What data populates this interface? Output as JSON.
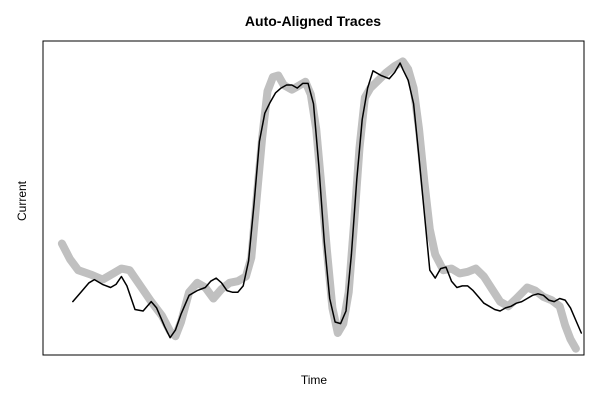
{
  "chart_data": {
    "type": "line",
    "title": "Auto-Aligned Traces",
    "xlabel": "Time",
    "ylabel": "Current",
    "xlim": [
      0,
      100
    ],
    "ylim": [
      0,
      100
    ],
    "x_ticks_shown": false,
    "y_ticks_shown": false,
    "grid": false,
    "legend": "none",
    "series": [
      {
        "color": "#c0c0c0",
        "style": "thick",
        "points": [
          [
            3.5,
            35.5
          ],
          [
            5.0,
            30.5
          ],
          [
            6.5,
            27.0
          ],
          [
            9.0,
            25.5
          ],
          [
            11.0,
            24.0
          ],
          [
            13.0,
            26.0
          ],
          [
            14.5,
            27.5
          ],
          [
            16.0,
            27.0
          ],
          [
            18.0,
            22.0
          ],
          [
            20.0,
            17.0
          ],
          [
            22.0,
            12.5
          ],
          [
            23.5,
            7.5
          ],
          [
            24.5,
            6.0
          ],
          [
            25.5,
            10.5
          ],
          [
            27.0,
            20.0
          ],
          [
            28.5,
            23.0
          ],
          [
            30.0,
            21.5
          ],
          [
            31.5,
            18.0
          ],
          [
            33.0,
            21.0
          ],
          [
            34.5,
            23.0
          ],
          [
            36.0,
            23.5
          ],
          [
            37.5,
            25.0
          ],
          [
            38.5,
            31.0
          ],
          [
            39.5,
            50.0
          ],
          [
            40.5,
            69.0
          ],
          [
            41.5,
            84.0
          ],
          [
            42.5,
            88.5
          ],
          [
            43.5,
            89.0
          ],
          [
            44.5,
            86.0
          ],
          [
            46.0,
            84.5
          ],
          [
            47.5,
            86.0
          ],
          [
            48.5,
            87.0
          ],
          [
            49.5,
            83.0
          ],
          [
            50.5,
            72.0
          ],
          [
            51.5,
            53.0
          ],
          [
            52.5,
            33.0
          ],
          [
            53.5,
            15.0
          ],
          [
            54.5,
            7.0
          ],
          [
            55.5,
            10.0
          ],
          [
            56.5,
            20.0
          ],
          [
            57.5,
            42.0
          ],
          [
            58.5,
            66.0
          ],
          [
            59.5,
            82.0
          ],
          [
            60.5,
            85.0
          ],
          [
            62.0,
            87.5
          ],
          [
            63.5,
            90.0
          ],
          [
            65.0,
            92.0
          ],
          [
            66.5,
            93.5
          ],
          [
            67.5,
            91.0
          ],
          [
            68.5,
            85.0
          ],
          [
            69.5,
            72.0
          ],
          [
            70.5,
            55.0
          ],
          [
            71.5,
            40.0
          ],
          [
            72.5,
            32.0
          ],
          [
            74.0,
            27.0
          ],
          [
            75.5,
            27.5
          ],
          [
            77.0,
            26.0
          ],
          [
            78.5,
            26.5
          ],
          [
            80.0,
            27.5
          ],
          [
            81.5,
            25.0
          ],
          [
            83.0,
            21.0
          ],
          [
            84.5,
            17.0
          ],
          [
            86.0,
            15.5
          ],
          [
            87.5,
            18.0
          ],
          [
            89.5,
            21.5
          ],
          [
            91.0,
            20.5
          ],
          [
            92.5,
            18.5
          ],
          [
            94.0,
            17.5
          ],
          [
            95.5,
            15.5
          ],
          [
            96.5,
            9.5
          ],
          [
            97.5,
            5.0
          ],
          [
            98.5,
            2.0
          ]
        ]
      },
      {
        "color": "#000000",
        "style": "thin",
        "points": [
          [
            5.5,
            17.0
          ],
          [
            7.0,
            20.0
          ],
          [
            8.5,
            23.0
          ],
          [
            9.5,
            24.0
          ],
          [
            11.0,
            22.5
          ],
          [
            12.5,
            21.5
          ],
          [
            13.5,
            22.5
          ],
          [
            14.5,
            25.0
          ],
          [
            15.5,
            22.0
          ],
          [
            17.0,
            14.5
          ],
          [
            18.5,
            14.0
          ],
          [
            20.0,
            17.0
          ],
          [
            21.0,
            15.0
          ],
          [
            22.5,
            9.0
          ],
          [
            23.5,
            5.5
          ],
          [
            24.5,
            8.0
          ],
          [
            25.5,
            13.0
          ],
          [
            27.0,
            19.0
          ],
          [
            28.5,
            20.5
          ],
          [
            30.0,
            21.5
          ],
          [
            31.0,
            23.5
          ],
          [
            32.0,
            24.5
          ],
          [
            33.0,
            23.0
          ],
          [
            34.0,
            20.5
          ],
          [
            35.0,
            20.0
          ],
          [
            36.0,
            20.0
          ],
          [
            37.0,
            22.0
          ],
          [
            38.0,
            30.0
          ],
          [
            39.0,
            48.0
          ],
          [
            40.0,
            68.0
          ],
          [
            41.0,
            77.0
          ],
          [
            42.0,
            80.5
          ],
          [
            43.0,
            83.5
          ],
          [
            44.0,
            85.0
          ],
          [
            45.0,
            86.0
          ],
          [
            46.0,
            86.0
          ],
          [
            47.0,
            85.0
          ],
          [
            48.0,
            86.5
          ],
          [
            49.0,
            86.5
          ],
          [
            50.0,
            80.0
          ],
          [
            51.0,
            60.0
          ],
          [
            52.0,
            36.0
          ],
          [
            53.0,
            18.0
          ],
          [
            54.0,
            10.5
          ],
          [
            55.0,
            10.0
          ],
          [
            56.0,
            14.0
          ],
          [
            57.0,
            32.0
          ],
          [
            58.0,
            56.0
          ],
          [
            59.0,
            75.0
          ],
          [
            60.0,
            85.0
          ],
          [
            61.0,
            90.5
          ],
          [
            62.5,
            89.0
          ],
          [
            64.0,
            88.0
          ],
          [
            65.0,
            90.0
          ],
          [
            66.0,
            93.0
          ],
          [
            66.5,
            91.0
          ],
          [
            67.5,
            87.5
          ],
          [
            68.5,
            80.0
          ],
          [
            69.5,
            63.0
          ],
          [
            70.5,
            45.0
          ],
          [
            71.5,
            27.0
          ],
          [
            72.5,
            24.5
          ],
          [
            73.5,
            27.5
          ],
          [
            74.5,
            28.0
          ],
          [
            75.5,
            23.5
          ],
          [
            76.5,
            21.5
          ],
          [
            77.5,
            22.0
          ],
          [
            78.5,
            22.0
          ],
          [
            79.5,
            20.5
          ],
          [
            80.5,
            18.5
          ],
          [
            81.5,
            16.5
          ],
          [
            82.5,
            15.5
          ],
          [
            83.5,
            14.5
          ],
          [
            84.5,
            14.0
          ],
          [
            85.5,
            15.0
          ],
          [
            86.5,
            15.5
          ],
          [
            87.5,
            16.5
          ],
          [
            88.5,
            17.0
          ],
          [
            89.5,
            18.0
          ],
          [
            90.5,
            19.0
          ],
          [
            91.5,
            19.5
          ],
          [
            92.5,
            19.0
          ],
          [
            93.5,
            17.5
          ],
          [
            94.5,
            17.0
          ],
          [
            95.5,
            18.0
          ],
          [
            96.5,
            17.5
          ],
          [
            97.5,
            15.0
          ],
          [
            98.5,
            11.0
          ],
          [
            99.5,
            7.0
          ]
        ]
      }
    ]
  }
}
